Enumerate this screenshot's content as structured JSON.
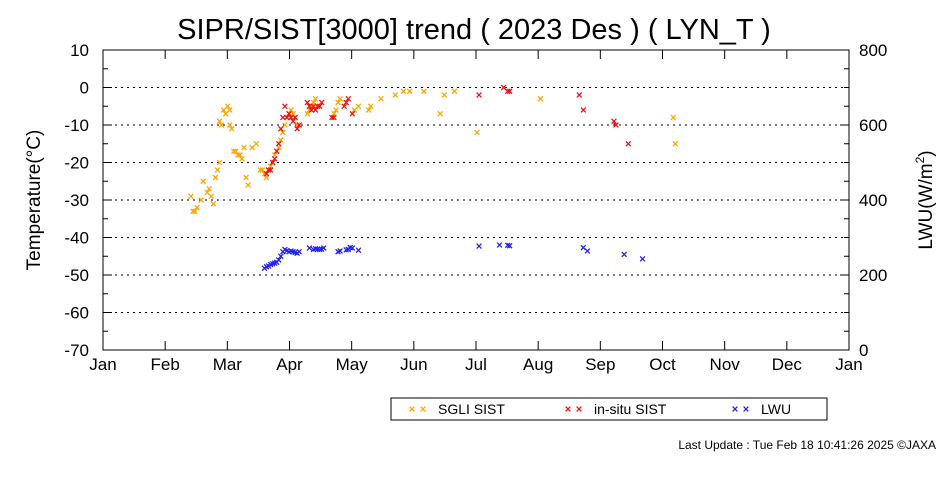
{
  "chart_data": {
    "type": "scatter",
    "title": "SIPR/SIST[3000] trend ( 2023 Des ) ( LYN_T )",
    "ylabel": "Temperature(°C)",
    "y2label_main": "LWU(W/m",
    "y2label_sup": "2",
    "y2label_end": ")",
    "ylim": [
      -70,
      10
    ],
    "y2lim": [
      0,
      800
    ],
    "y_ticks": [
      10,
      0,
      -10,
      -20,
      -30,
      -40,
      -50,
      -60,
      -70
    ],
    "y2_ticks": [
      800,
      600,
      400,
      200,
      0
    ],
    "months": [
      "Jan",
      "Feb",
      "Mar",
      "Apr",
      "May",
      "Jun",
      "Jul",
      "Aug",
      "Sep",
      "Oct",
      "Nov",
      "Dec",
      "Jan"
    ],
    "grid": "horizontal dotted",
    "legend_position": "bottom-center",
    "series": [
      {
        "name": "SGLI SIST",
        "color": "#ffa500",
        "axis": "left",
        "points": [
          [
            43,
            -29
          ],
          [
            44,
            -33
          ],
          [
            45,
            -33
          ],
          [
            46,
            -32
          ],
          [
            48,
            -30
          ],
          [
            49,
            -25
          ],
          [
            51,
            -28
          ],
          [
            52,
            -27
          ],
          [
            53,
            -29
          ],
          [
            54,
            -31
          ],
          [
            55,
            -24
          ],
          [
            56,
            -22
          ],
          [
            57,
            -20
          ],
          [
            57,
            -9
          ],
          [
            58,
            -10
          ],
          [
            59,
            -6
          ],
          [
            60,
            -7
          ],
          [
            61,
            -5
          ],
          [
            62,
            -6
          ],
          [
            62,
            -10
          ],
          [
            63,
            -11
          ],
          [
            64,
            -17
          ],
          [
            65,
            -17
          ],
          [
            66,
            -18
          ],
          [
            67,
            -18
          ],
          [
            68,
            -19
          ],
          [
            69,
            -16
          ],
          [
            70,
            -24
          ],
          [
            71,
            -26
          ],
          [
            73,
            -16
          ],
          [
            75,
            -15
          ],
          [
            77,
            -22
          ],
          [
            78,
            -22
          ],
          [
            79,
            -23
          ],
          [
            80,
            -24
          ],
          [
            81,
            -22
          ],
          [
            82,
            -21
          ],
          [
            83,
            -20
          ],
          [
            84,
            -18
          ],
          [
            85,
            -17
          ],
          [
            86,
            -16
          ],
          [
            87,
            -14
          ],
          [
            88,
            -12
          ],
          [
            89,
            -10
          ],
          [
            90,
            -8
          ],
          [
            91,
            -7
          ],
          [
            92,
            -6
          ],
          [
            93,
            -7
          ],
          [
            94,
            -8
          ],
          [
            95,
            -10
          ],
          [
            100,
            -7
          ],
          [
            101,
            -6
          ],
          [
            102,
            -5
          ],
          [
            103,
            -4
          ],
          [
            104,
            -3
          ],
          [
            113,
            -7
          ],
          [
            114,
            -6
          ],
          [
            115,
            -4
          ],
          [
            116,
            -3
          ],
          [
            123,
            -6
          ],
          [
            125,
            -5
          ],
          [
            130,
            -6
          ],
          [
            131,
            -5
          ],
          [
            136,
            -3
          ],
          [
            143,
            -2
          ],
          [
            147,
            -1
          ],
          [
            150,
            -1
          ],
          [
            157,
            -1
          ],
          [
            165,
            -7
          ],
          [
            167,
            -2
          ],
          [
            172,
            -1
          ],
          [
            183,
            -12
          ],
          [
            214,
            -3
          ],
          [
            279,
            -8
          ],
          [
            280,
            -15
          ]
        ]
      },
      {
        "name": "in-situ SIST",
        "color": "#ee1111",
        "axis": "left",
        "points": [
          [
            80,
            -23
          ],
          [
            81,
            -22
          ],
          [
            82,
            -22
          ],
          [
            83,
            -20
          ],
          [
            84,
            -19
          ],
          [
            85,
            -17
          ],
          [
            86,
            -15
          ],
          [
            87,
            -11
          ],
          [
            88,
            -8
          ],
          [
            89,
            -5
          ],
          [
            90,
            -8
          ],
          [
            91,
            -7
          ],
          [
            92,
            -8
          ],
          [
            93,
            -9
          ],
          [
            94,
            -8
          ],
          [
            95,
            -11
          ],
          [
            96,
            -10
          ],
          [
            100,
            -4
          ],
          [
            101,
            -5
          ],
          [
            102,
            -6
          ],
          [
            103,
            -5
          ],
          [
            104,
            -6
          ],
          [
            105,
            -5
          ],
          [
            106,
            -5
          ],
          [
            107,
            -4
          ],
          [
            112,
            -8
          ],
          [
            113,
            -8
          ],
          [
            118,
            -5
          ],
          [
            119,
            -4
          ],
          [
            120,
            -3
          ],
          [
            122,
            -7
          ],
          [
            184,
            -2
          ],
          [
            196,
            0
          ],
          [
            198,
            -1
          ],
          [
            199,
            -1
          ],
          [
            233,
            -2
          ],
          [
            235,
            -6
          ],
          [
            250,
            -9
          ],
          [
            251,
            -10
          ],
          [
            257,
            -15
          ]
        ]
      },
      {
        "name": "LWU",
        "color": "#2222ee",
        "axis": "right",
        "points": [
          [
            79,
            218
          ],
          [
            80,
            222
          ],
          [
            81,
            224
          ],
          [
            82,
            228
          ],
          [
            83,
            230
          ],
          [
            84,
            232
          ],
          [
            85,
            234
          ],
          [
            86,
            240
          ],
          [
            87,
            250
          ],
          [
            88,
            262
          ],
          [
            89,
            268
          ],
          [
            90,
            265
          ],
          [
            91,
            262
          ],
          [
            92,
            264
          ],
          [
            93,
            262
          ],
          [
            94,
            260
          ],
          [
            95,
            258
          ],
          [
            96,
            262
          ],
          [
            101,
            272
          ],
          [
            103,
            268
          ],
          [
            104,
            270
          ],
          [
            105,
            269
          ],
          [
            106,
            268
          ],
          [
            107,
            269
          ],
          [
            108,
            272
          ],
          [
            115,
            262
          ],
          [
            116,
            264
          ],
          [
            119,
            267
          ],
          [
            120,
            268
          ],
          [
            121,
            273
          ],
          [
            122,
            272
          ],
          [
            125,
            266
          ],
          [
            184,
            277
          ],
          [
            194,
            280
          ],
          [
            198,
            279
          ],
          [
            199,
            278
          ],
          [
            235,
            273
          ],
          [
            237,
            264
          ],
          [
            255,
            255
          ],
          [
            264,
            243
          ]
        ]
      }
    ]
  },
  "footer": {
    "update_text": "Last Update : Tue Feb 18 10:41:26 2025  ©JAXA"
  }
}
